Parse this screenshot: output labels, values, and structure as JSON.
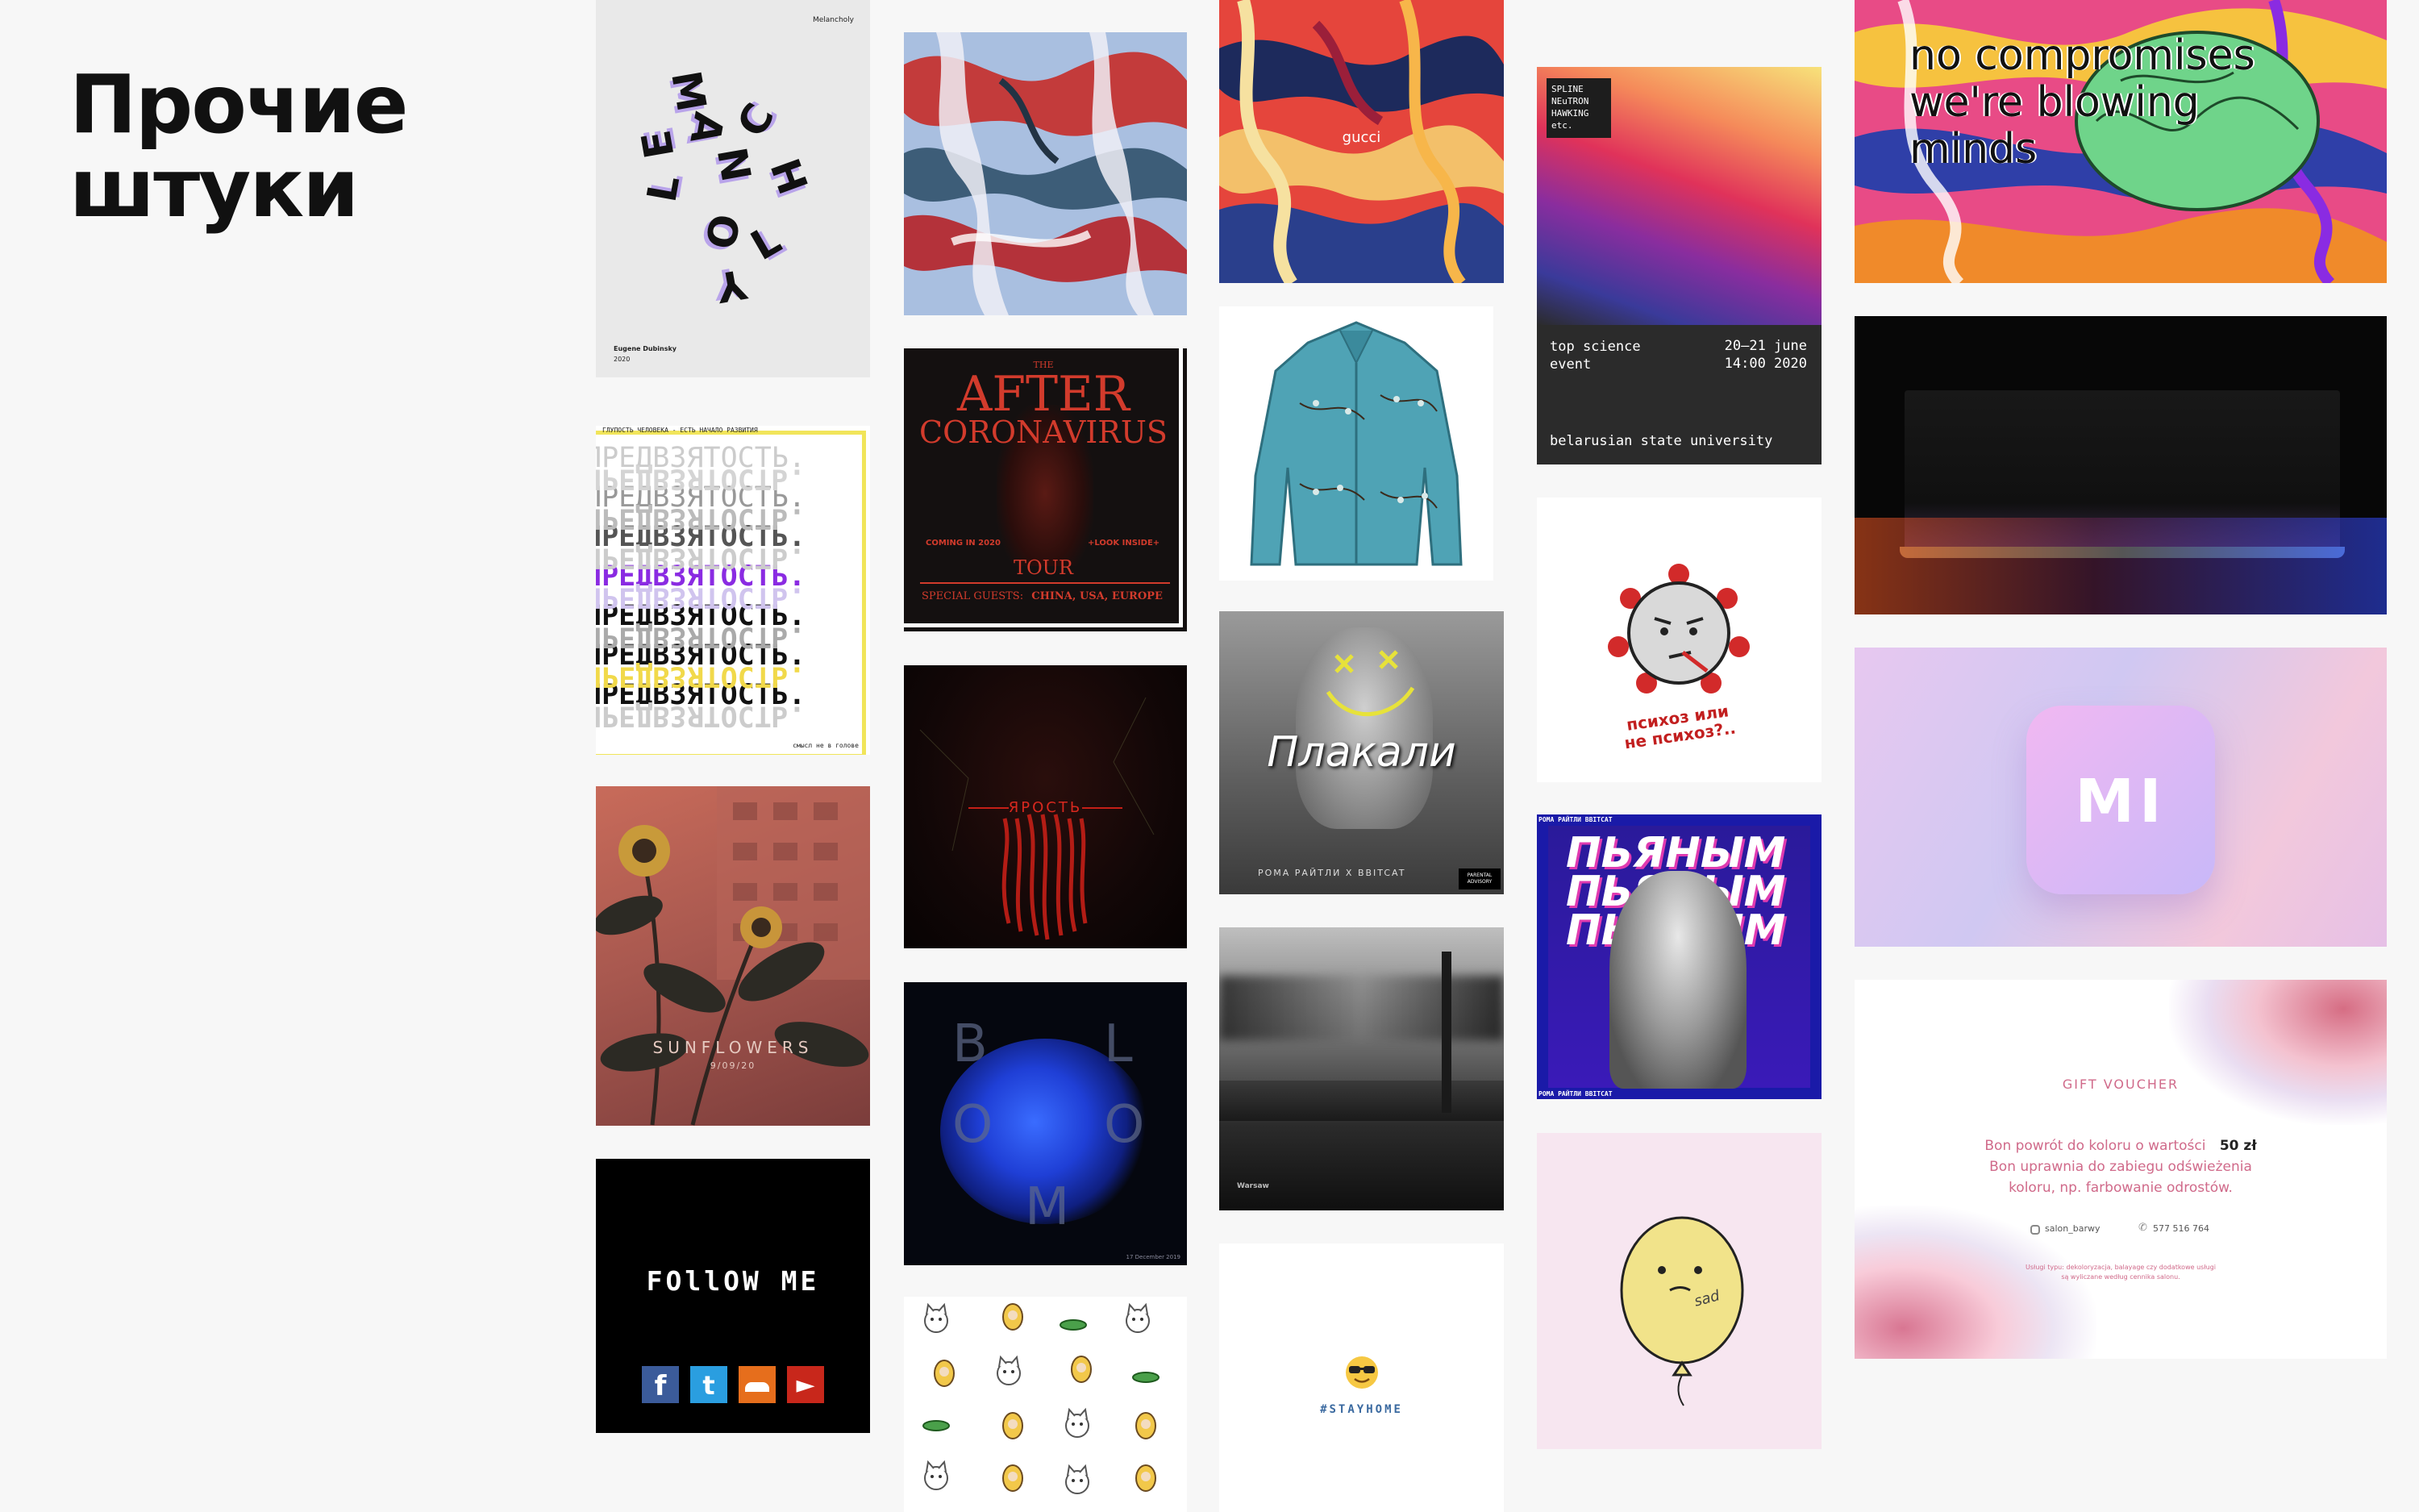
{
  "page": {
    "title_line1": "Прочие",
    "title_line2": "штуки"
  },
  "colors": {
    "background": "#f7f7f7",
    "title": "#111111"
  },
  "posters": {
    "melancholy": {
      "label": "Melancholy",
      "letters": [
        "M",
        "E",
        "L",
        "A",
        "N",
        "C",
        "H",
        "O",
        "L",
        "Y"
      ],
      "author": "Eugene Dubinsky",
      "year": "2020"
    },
    "bias": {
      "top_text": "ГЛУПОСТЬ ЧЕЛОВЕКА - ЕСТЬ НАЧАЛО РАЗВИТИЯ",
      "word": "ПРЕДВЗЯТОСТЬ.",
      "bottom_text": "смысл не в голове"
    },
    "sunflowers": {
      "title": "SUNFLOWERS",
      "date": "9/09/20"
    },
    "follow": {
      "text": "FOllOW ME"
    },
    "after": {
      "the": "THE",
      "line1": "AFTER",
      "line2": "CORONAVIRUS",
      "coming": "COMING IN 2020",
      "look": "+LOOK INSIDE+",
      "tour": "TOUR",
      "guests_label": "SPECIAL GUESTS:",
      "guests": "CHINA, USA, EUROPE"
    },
    "yarost": {
      "title": "ЯРОСТЬ"
    },
    "bloom": {
      "letters": [
        "B",
        "L",
        "O",
        "O",
        "M"
      ],
      "date": "17 December 2019"
    },
    "gucci": {
      "label": "gucci"
    },
    "plakali": {
      "title": "Плакали",
      "artist": "РОМА РАЙТЛИ X BBITCAT",
      "advisory": "PARENTAL ADVISORY"
    },
    "warsaw": {
      "label": "Warsaw"
    },
    "stayhome": {
      "tag": "#STAYHOME"
    },
    "science": {
      "tag_lines": [
        "SPLINE",
        "NEuTRON",
        "HAWKING",
        "etc."
      ],
      "event": "top science event",
      "dates": "20–21 june",
      "time": "14:00 2020",
      "venue": "belarusian state university"
    },
    "psychosis": {
      "text": "психоз или не психоз?.."
    },
    "pyanym": {
      "word": "ПЬЯНЫМ",
      "border": "РОМА РАЙТЛИ BBITCAT"
    },
    "sad": {
      "label": "sad"
    },
    "minds": {
      "text": "no compromises we're blowing minds"
    },
    "mi": {
      "logo": "MI"
    },
    "voucher": {
      "title": "GIFT VOUCHER",
      "line1": "Bon powrót do koloru o wartości",
      "amount": "50 zł",
      "line2": "Bon uprawnia do zabiegu odświeżenia",
      "line3": "koloru, np. farbowanie odrostów.",
      "instagram": "salon_barwy",
      "phone": "577 516 764",
      "fine1": "Usługi typu: dekoloryzacja, balayage czy dodatkowe usługi",
      "fine2": "są wyliczane według cennika salonu."
    }
  }
}
